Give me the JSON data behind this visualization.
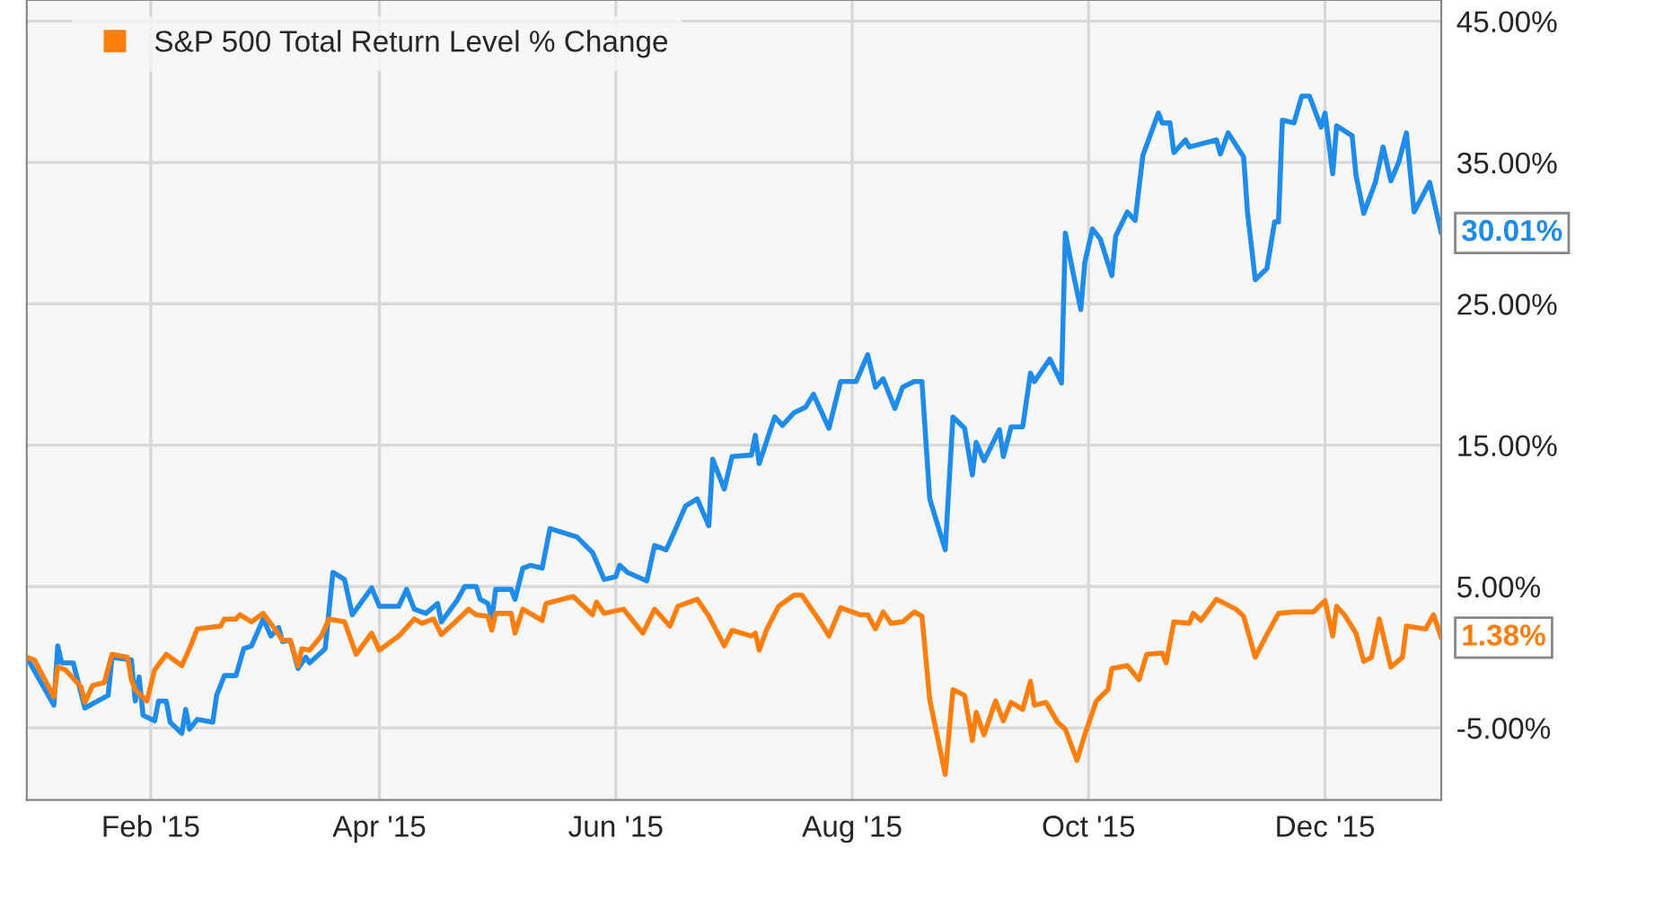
{
  "chart_data": {
    "type": "line",
    "legend": "top left",
    "grid": true,
    "marker": "none",
    "line_style": "solid",
    "xlim": [
      "2014-12-31",
      "2015-12-31"
    ],
    "xticks": [
      {
        "value": "2015-02-01",
        "label": "Feb '15"
      },
      {
        "value": "2015-04-01",
        "label": "Apr '15"
      },
      {
        "value": "2015-06-01",
        "label": "Jun '15"
      },
      {
        "value": "2015-08-01",
        "label": "Aug '15"
      },
      {
        "value": "2015-10-01",
        "label": "Oct '15"
      },
      {
        "value": "2015-12-01",
        "label": "Dec '15"
      }
    ],
    "ylim": [
      -10.1,
      46.5
    ],
    "yticks": [
      {
        "value": -5,
        "label": "-5.00%"
      },
      {
        "value": 5,
        "label": "5.00%"
      },
      {
        "value": 15,
        "label": "15.00%"
      },
      {
        "value": 25,
        "label": "25.00%"
      },
      {
        "value": 35,
        "label": "35.00%"
      },
      {
        "value": 45,
        "label": "45.00%"
      }
    ],
    "annotations": [
      {
        "text": "30.01%",
        "x": "2015-12-31",
        "y": 30.01
      },
      {
        "text": "1.38%",
        "x": "2015-12-31",
        "y": 1.38
      }
    ],
    "series": [
      {
        "color": "#1f8ceb",
        "x": [
          "2014-12-31",
          "2015-01-07",
          "2015-01-08",
          "2015-01-09",
          "2015-01-12",
          "2015-01-15",
          "2015-01-21",
          "2015-01-22",
          "2015-01-27",
          "2015-01-28",
          "2015-01-29",
          "2015-01-30",
          "2015-02-02",
          "2015-02-03",
          "2015-02-05",
          "2015-02-06",
          "2015-02-09",
          "2015-02-10",
          "2015-02-11",
          "2015-02-13",
          "2015-02-17",
          "2015-02-18",
          "2015-02-20",
          "2015-02-23",
          "2015-02-25",
          "2015-02-27",
          "2015-03-02",
          "2015-03-04",
          "2015-03-06",
          "2015-03-07",
          "2015-03-09",
          "2015-03-11",
          "2015-03-13",
          "2015-03-14",
          "2015-03-18",
          "2015-03-20",
          "2015-03-23",
          "2015-03-25",
          "2015-03-30",
          "2015-04-01",
          "2015-04-06",
          "2015-04-08",
          "2015-04-10",
          "2015-04-13",
          "2015-04-16",
          "2015-04-17",
          "2015-04-21",
          "2015-04-23",
          "2015-04-26",
          "2015-04-27",
          "2015-04-29",
          "2015-04-30",
          "2015-05-01",
          "2015-05-05",
          "2015-05-06",
          "2015-05-08",
          "2015-05-10",
          "2015-05-13",
          "2015-05-15",
          "2015-05-22",
          "2015-05-26",
          "2015-05-29",
          "2015-06-01",
          "2015-06-02",
          "2015-06-04",
          "2015-06-09",
          "2015-06-11",
          "2015-06-14",
          "2015-06-16",
          "2015-06-19",
          "2015-06-22",
          "2015-06-25",
          "2015-06-26",
          "2015-06-29",
          "2015-07-01",
          "2015-07-06",
          "2015-07-07",
          "2015-07-08",
          "2015-07-12",
          "2015-07-14",
          "2015-07-17",
          "2015-07-20",
          "2015-07-22",
          "2015-07-26",
          "2015-07-29",
          "2015-08-02",
          "2015-08-05",
          "2015-08-07",
          "2015-08-09",
          "2015-08-12",
          "2015-08-14",
          "2015-08-17",
          "2015-08-19",
          "2015-08-21",
          "2015-08-25",
          "2015-08-27",
          "2015-08-30",
          "2015-09-01",
          "2015-09-02",
          "2015-09-04",
          "2015-09-08",
          "2015-09-09",
          "2015-09-11",
          "2015-09-14",
          "2015-09-16",
          "2015-09-17",
          "2015-09-21",
          "2015-09-24",
          "2015-09-25",
          "2015-09-27",
          "2015-09-29",
          "2015-09-30",
          "2015-10-02",
          "2015-10-04",
          "2015-10-07",
          "2015-10-08",
          "2015-10-11",
          "2015-10-13",
          "2015-10-15",
          "2015-10-19",
          "2015-10-20",
          "2015-10-22",
          "2015-10-23",
          "2015-10-26",
          "2015-10-27",
          "2015-11-03",
          "2015-11-04",
          "2015-11-06",
          "2015-11-10",
          "2015-11-11",
          "2015-11-13",
          "2015-11-16",
          "2015-11-18",
          "2015-11-19",
          "2015-11-20",
          "2015-11-23",
          "2015-11-25",
          "2015-11-27",
          "2015-11-30",
          "2015-12-01",
          "2015-12-03",
          "2015-12-04",
          "2015-12-08",
          "2015-12-09",
          "2015-12-11",
          "2015-12-14",
          "2015-12-16",
          "2015-12-18",
          "2015-12-20",
          "2015-12-22",
          "2015-12-24",
          "2015-12-28",
          "2015-12-31"
        ],
        "values": [
          0,
          -3.4,
          0.8,
          -0.4,
          -0.4,
          -3.6,
          -2.7,
          0,
          -0.2,
          -3.1,
          -1.4,
          -4.1,
          -4.5,
          -3.1,
          -3.1,
          -4.6,
          -5.4,
          -3.7,
          -5.1,
          -4.4,
          -4.6,
          -2.7,
          -1.3,
          -1.3,
          0.6,
          0.8,
          2.7,
          1.5,
          2.1,
          1.1,
          1.2,
          -0.8,
          0,
          -0.4,
          0.6,
          6.0,
          5.5,
          3.0,
          4.9,
          3.6,
          3.6,
          4.8,
          3.4,
          3.1,
          3.8,
          2.5,
          4.0,
          5.0,
          5.0,
          4.1,
          3.8,
          2.7,
          4.8,
          4.8,
          4.1,
          6.3,
          6.5,
          6.3,
          9.1,
          8.5,
          7.4,
          5.5,
          5.7,
          6.5,
          6.0,
          5.4,
          7.9,
          7.6,
          8.8,
          10.7,
          11.2,
          9.3,
          14.0,
          11.9,
          14.2,
          14.3,
          15.7,
          13.7,
          17.0,
          16.4,
          17.3,
          17.7,
          18.6,
          16.2,
          19.5,
          19.5,
          21.4,
          19.1,
          19.7,
          17.6,
          19.1,
          19.5,
          19.5,
          11.2,
          7.6,
          17.0,
          16.2,
          12.9,
          15.2,
          13.9,
          16.1,
          14.2,
          16.3,
          16.3,
          20.1,
          19.5,
          21.1,
          19.4,
          30.0,
          27.2,
          24.6,
          27.9,
          30.3,
          29.6,
          27.0,
          29.8,
          31.5,
          30.9,
          35.5,
          38.5,
          37.8,
          37.8,
          35.7,
          36.6,
          36.1,
          36.6,
          35.6,
          37.1,
          35.4,
          31.5,
          26.7,
          27.5,
          30.8,
          30.8,
          38.0,
          37.8,
          39.7,
          39.7,
          37.5,
          38.5,
          34.2,
          37.6,
          36.9,
          34.1,
          31.4,
          33.6,
          36.1,
          33.7,
          35.0,
          37.1,
          31.5,
          33.6,
          30.01
        ]
      },
      {
        "name": "S&P 500 Total Return Level % Change",
        "color": "#ff7f0e",
        "x": [
          "2014-12-31",
          "2015-01-02",
          "2015-01-07",
          "2015-01-08",
          "2015-01-10",
          "2015-01-14",
          "2015-01-15",
          "2015-01-17",
          "2015-01-20",
          "2015-01-22",
          "2015-01-26",
          "2015-01-27",
          "2015-01-28",
          "2015-01-31",
          "2015-02-02",
          "2015-02-05",
          "2015-02-09",
          "2015-02-11",
          "2015-02-13",
          "2015-02-19",
          "2015-02-20",
          "2015-02-23",
          "2015-02-24",
          "2015-02-27",
          "2015-03-02",
          "2015-03-05",
          "2015-03-07",
          "2015-03-09",
          "2015-03-11",
          "2015-03-12",
          "2015-03-14",
          "2015-03-17",
          "2015-03-19",
          "2015-03-23",
          "2015-03-26",
          "2015-03-30",
          "2015-04-01",
          "2015-04-06",
          "2015-04-10",
          "2015-04-12",
          "2015-04-15",
          "2015-04-17",
          "2015-04-21",
          "2015-04-24",
          "2015-04-26",
          "2015-04-29",
          "2015-04-30",
          "2015-05-01",
          "2015-05-05",
          "2015-05-06",
          "2015-05-08",
          "2015-05-13",
          "2015-05-14",
          "2015-05-21",
          "2015-05-26",
          "2015-05-27",
          "2015-05-29",
          "2015-06-03",
          "2015-06-08",
          "2015-06-11",
          "2015-06-15",
          "2015-06-17",
          "2015-06-19",
          "2015-06-22",
          "2015-06-25",
          "2015-06-29",
          "2015-07-01",
          "2015-07-06",
          "2015-07-07",
          "2015-07-08",
          "2015-07-10",
          "2015-07-13",
          "2015-07-17",
          "2015-07-19",
          "2015-07-24",
          "2015-07-26",
          "2015-07-29",
          "2015-08-03",
          "2015-08-05",
          "2015-08-07",
          "2015-08-09",
          "2015-08-11",
          "2015-08-14",
          "2015-08-17",
          "2015-08-19",
          "2015-08-21",
          "2015-08-25",
          "2015-08-27",
          "2015-08-30",
          "2015-09-01",
          "2015-09-02",
          "2015-09-04",
          "2015-09-07",
          "2015-09-09",
          "2015-09-11",
          "2015-09-14",
          "2015-09-16",
          "2015-09-17",
          "2015-09-20",
          "2015-09-23",
          "2015-09-25",
          "2015-09-28",
          "2015-09-30",
          "2015-10-03",
          "2015-10-06",
          "2015-10-07",
          "2015-10-11",
          "2015-10-14",
          "2015-10-16",
          "2015-10-20",
          "2015-10-21",
          "2015-10-23",
          "2015-10-27",
          "2015-10-28",
          "2015-10-30",
          "2015-11-03",
          "2015-11-08",
          "2015-11-10",
          "2015-11-13",
          "2015-11-16",
          "2015-11-19",
          "2015-11-23",
          "2015-11-28",
          "2015-12-01",
          "2015-12-03",
          "2015-12-04",
          "2015-12-06",
          "2015-12-09",
          "2015-12-11",
          "2015-12-13",
          "2015-12-15",
          "2015-12-18",
          "2015-12-21",
          "2015-12-22",
          "2015-12-27",
          "2015-12-29",
          "2015-12-31"
        ],
        "values": [
          0,
          -0.2,
          -2.8,
          -0.7,
          -0.9,
          -2.1,
          -3.2,
          -2.0,
          -1.8,
          0.2,
          0,
          -1.6,
          -2.3,
          -3.1,
          -0.9,
          0.2,
          -0.6,
          0.6,
          2.0,
          2.2,
          2.7,
          2.7,
          3.0,
          2.5,
          3.1,
          2.0,
          1.2,
          1.2,
          -0.6,
          0.6,
          0.5,
          1.5,
          2.7,
          2.5,
          0.2,
          1.7,
          0.5,
          1.5,
          2.7,
          2.4,
          2.7,
          1.6,
          2.6,
          3.4,
          3.0,
          2.9,
          1.9,
          3.1,
          3.1,
          1.7,
          3.4,
          2.6,
          3.8,
          4.3,
          3.0,
          3.9,
          3.1,
          3.4,
          1.7,
          3.4,
          2.2,
          3.6,
          3.8,
          4.1,
          2.9,
          0.8,
          1.9,
          1.5,
          1.7,
          0.5,
          2.0,
          3.6,
          4.4,
          4.4,
          2.4,
          1.5,
          3.5,
          3.0,
          3.0,
          2.0,
          3.2,
          2.4,
          2.5,
          3.2,
          2.9,
          -3.0,
          -8.3,
          -2.3,
          -2.7,
          -5.9,
          -3.9,
          -5.5,
          -3.1,
          -4.5,
          -3.2,
          -3.7,
          -1.7,
          -3.4,
          -3.2,
          -4.6,
          -5.1,
          -7.3,
          -5.5,
          -3.1,
          -2.3,
          -0.8,
          -0.6,
          -1.6,
          0.2,
          0.3,
          -0.4,
          2.5,
          2.4,
          3.1,
          2.6,
          4.1,
          3.4,
          2.9,
          0.0,
          1.6,
          3.1,
          3.2,
          3.2,
          4.0,
          1.5,
          3.6,
          3.0,
          1.7,
          -0.3,
          0.0,
          2.7,
          -0.7,
          0.0,
          2.2,
          2.0,
          3.0,
          1.38
        ]
      }
    ]
  }
}
